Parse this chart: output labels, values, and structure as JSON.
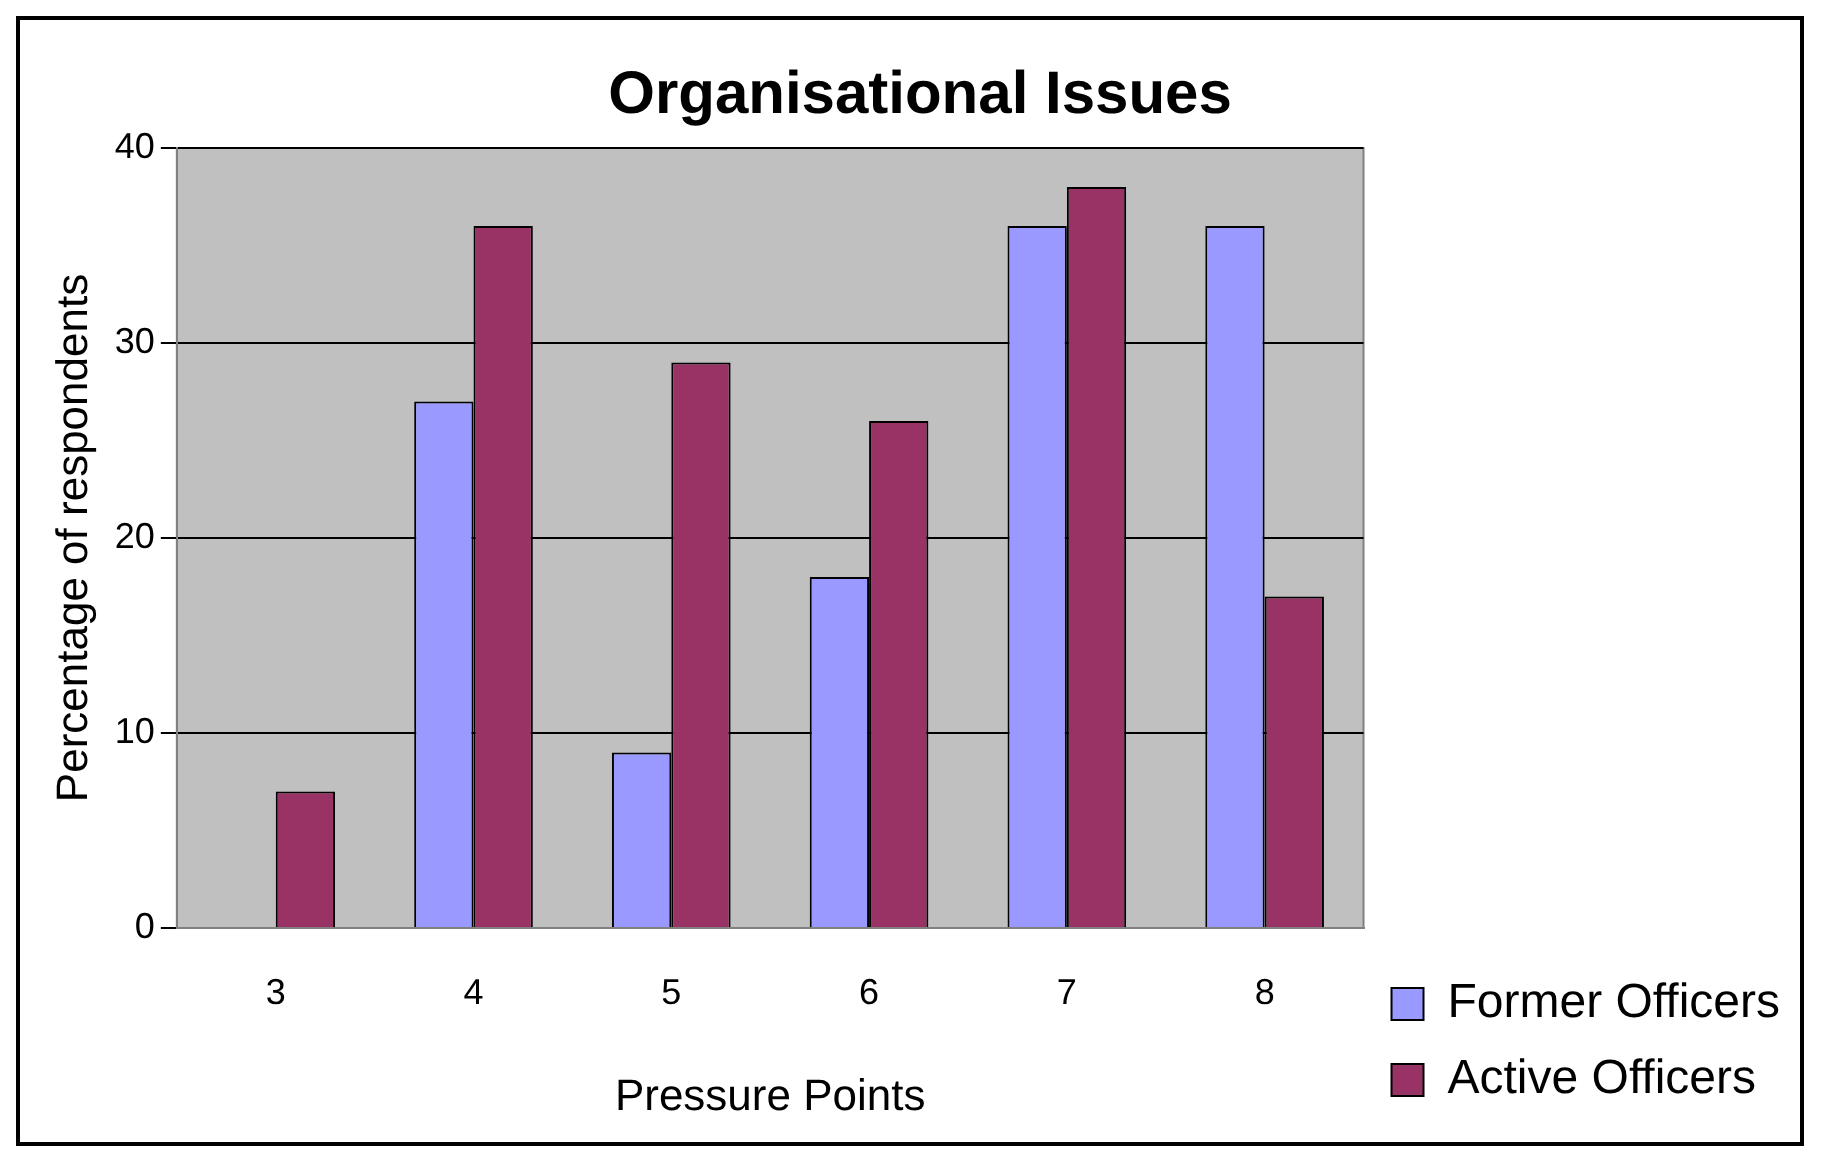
{
  "chart_data": {
    "type": "bar",
    "title": "Organisational Issues",
    "xlabel": "Pressure Points",
    "ylabel": "Percentage of respondents",
    "categories": [
      "3",
      "4",
      "5",
      "6",
      "7",
      "8"
    ],
    "series": [
      {
        "name": "Former Officers",
        "color": "#9999ff",
        "values": [
          null,
          27,
          9,
          18,
          36,
          36
        ]
      },
      {
        "name": "Active Officers",
        "color": "#993366",
        "values": [
          7,
          36,
          29,
          26,
          38,
          17
        ]
      }
    ],
    "ylim": [
      0,
      40
    ],
    "yticks": [
      0,
      10,
      20,
      30,
      40
    ],
    "grid": "y",
    "legend": "bottom right"
  }
}
